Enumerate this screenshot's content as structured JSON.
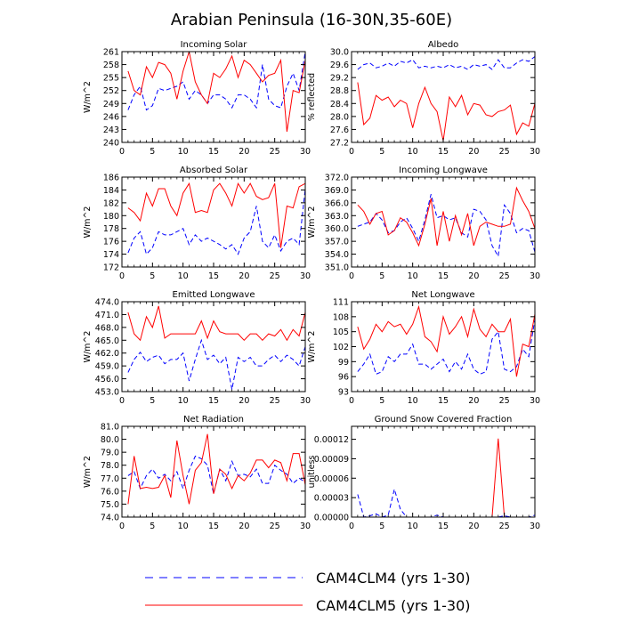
{
  "title": "Arabian Peninsula (16-30N,35-60E)",
  "legend": [
    {
      "name": "CAM4CLM4 (yrs 1-30)",
      "color": "#0000ff",
      "dash": "dashed"
    },
    {
      "name": "CAM4CLM5 (yrs 1-30)",
      "color": "#ff0000",
      "dash": "solid"
    }
  ],
  "chart_data": [
    {
      "type": "line",
      "title": "Incoming Solar",
      "ylabel": "W/m^2",
      "ylim": [
        240,
        261
      ],
      "yticks": [
        "240",
        "243",
        "246",
        "249",
        "252",
        "255",
        "258",
        "261"
      ],
      "xlim": [
        0,
        30
      ],
      "xticks": [
        "0",
        "5",
        "10",
        "15",
        "20",
        "25",
        "30"
      ],
      "grid": false,
      "x": [
        1,
        2,
        3,
        4,
        5,
        6,
        7,
        8,
        9,
        10,
        11,
        12,
        13,
        14,
        15,
        16,
        17,
        18,
        19,
        20,
        21,
        22,
        23,
        24,
        25,
        26,
        27,
        28,
        29,
        30
      ],
      "series": [
        {
          "name": "CAM4CLM4 (yrs 1-30)",
          "values": [
            247.5,
            251,
            253,
            247.5,
            248.5,
            252.5,
            252,
            252.5,
            253,
            254,
            250,
            252,
            251,
            249,
            251,
            251,
            250,
            248,
            251,
            251,
            250,
            248,
            258,
            250,
            248.5,
            248,
            253,
            256,
            252,
            261
          ]
        },
        {
          "name": "CAM4CLM5 (yrs 1-30)",
          "values": [
            256.5,
            252,
            251,
            257.5,
            255,
            258.5,
            258,
            256,
            250,
            256.5,
            261,
            254,
            251,
            249,
            256,
            255,
            257,
            260,
            255,
            259,
            258,
            256,
            254,
            255.5,
            256,
            259,
            242.5,
            252,
            251.5,
            259
          ]
        }
      ]
    },
    {
      "type": "line",
      "title": "Albedo",
      "ylabel": "% reflected",
      "ylim": [
        27.2,
        30.0
      ],
      "yticks": [
        "27.2",
        "27.6",
        "28.0",
        "28.4",
        "28.8",
        "29.2",
        "29.6",
        "30.0"
      ],
      "xlim": [
        0,
        30
      ],
      "xticks": [
        "0",
        "5",
        "10",
        "15",
        "20",
        "25",
        "30"
      ],
      "grid": false,
      "x": [
        1,
        2,
        3,
        4,
        5,
        6,
        7,
        8,
        9,
        10,
        11,
        12,
        13,
        14,
        15,
        16,
        17,
        18,
        19,
        20,
        21,
        22,
        23,
        24,
        25,
        26,
        27,
        28,
        29,
        30
      ],
      "series": [
        {
          "name": "CAM4CLM4 (yrs 1-30)",
          "values": [
            29.45,
            29.6,
            29.65,
            29.5,
            29.55,
            29.65,
            29.55,
            29.7,
            29.65,
            29.75,
            29.5,
            29.55,
            29.5,
            29.55,
            29.5,
            29.6,
            29.5,
            29.55,
            29.45,
            29.6,
            29.55,
            29.6,
            29.45,
            29.75,
            29.5,
            29.5,
            29.65,
            29.75,
            29.7,
            29.85
          ]
        },
        {
          "name": "CAM4CLM5 (yrs 1-30)",
          "values": [
            29.05,
            27.75,
            27.95,
            28.65,
            28.5,
            28.6,
            28.3,
            28.5,
            28.4,
            27.65,
            28.4,
            28.9,
            28.4,
            28.15,
            27.25,
            28.6,
            28.3,
            28.65,
            28.05,
            28.4,
            28.35,
            28.05,
            28.0,
            28.15,
            28.2,
            28.35,
            27.45,
            27.8,
            27.7,
            28.4
          ]
        }
      ]
    },
    {
      "type": "line",
      "title": "Absorbed Solar",
      "ylabel": "W/m^2",
      "ylim": [
        172,
        186
      ],
      "yticks": [
        "172",
        "174",
        "176",
        "178",
        "180",
        "182",
        "184",
        "186"
      ],
      "xlim": [
        0,
        30
      ],
      "xticks": [
        "0",
        "5",
        "10",
        "15",
        "20",
        "25",
        "30"
      ],
      "grid": false,
      "x": [
        1,
        2,
        3,
        4,
        5,
        6,
        7,
        8,
        9,
        10,
        11,
        12,
        13,
        14,
        15,
        16,
        17,
        18,
        19,
        20,
        21,
        22,
        23,
        24,
        25,
        26,
        27,
        28,
        29,
        30
      ],
      "series": [
        {
          "name": "CAM4CLM4 (yrs 1-30)",
          "values": [
            174.2,
            176.5,
            177.5,
            174,
            175,
            177.5,
            177,
            177,
            177.5,
            178,
            175.5,
            177,
            176,
            176.5,
            176,
            175.5,
            174.8,
            175.5,
            174,
            176.5,
            177.5,
            181.5,
            176,
            175,
            177,
            174.5,
            176,
            176.5,
            175.5,
            184.2
          ]
        },
        {
          "name": "CAM4CLM5 (yrs 1-30)",
          "values": [
            181.2,
            180.5,
            179.2,
            183.5,
            181.5,
            184.2,
            184.2,
            181.5,
            180,
            183.5,
            185,
            180.5,
            180.8,
            180.5,
            184,
            185,
            183.5,
            181.5,
            185,
            183.5,
            185,
            183,
            182.5,
            182.8,
            185,
            175,
            181.5,
            181.2,
            184.5,
            185
          ]
        }
      ]
    },
    {
      "type": "line",
      "title": "Incoming Longwave",
      "ylabel": "W/m^2",
      "ylim": [
        351.0,
        372.0
      ],
      "yticks": [
        "351.0",
        "354.0",
        "357.0",
        "360.0",
        "363.0",
        "366.0",
        "369.0",
        "372.0"
      ],
      "xlim": [
        0,
        30
      ],
      "xticks": [
        "0",
        "5",
        "10",
        "15",
        "20",
        "25",
        "30"
      ],
      "grid": false,
      "x": [
        1,
        2,
        3,
        4,
        5,
        6,
        7,
        8,
        9,
        10,
        11,
        12,
        13,
        14,
        15,
        16,
        17,
        18,
        19,
        20,
        21,
        22,
        23,
        24,
        25,
        26,
        27,
        28,
        29,
        30
      ],
      "series": [
        {
          "name": "CAM4CLM4 (yrs 1-30)",
          "values": [
            360.5,
            361,
            361.5,
            363.5,
            362,
            359,
            359.5,
            361.5,
            362.5,
            360,
            357,
            362,
            368,
            362.5,
            363,
            362,
            362.5,
            359,
            358,
            364.5,
            364,
            362,
            356,
            353.5,
            365.5,
            363.5,
            359,
            360,
            359.5,
            354.5
          ]
        },
        {
          "name": "CAM4CLM5 (yrs 1-30)",
          "values": [
            365.5,
            364,
            361,
            363.5,
            364,
            358.5,
            359.5,
            362.5,
            361.5,
            359,
            356,
            361,
            367,
            356,
            364,
            357,
            363,
            358.5,
            363.5,
            356,
            360.5,
            361.5,
            361,
            360.5,
            360.5,
            361,
            369.5,
            366.5,
            364,
            360
          ]
        }
      ]
    },
    {
      "type": "line",
      "title": "Emitted Longwave",
      "ylabel": "W/m^2",
      "ylim": [
        453.0,
        474.0
      ],
      "yticks": [
        "453.0",
        "456.0",
        "459.0",
        "462.0",
        "465.0",
        "468.0",
        "471.0",
        "474.0"
      ],
      "xlim": [
        0,
        30
      ],
      "xticks": [
        "0",
        "5",
        "10",
        "15",
        "20",
        "25",
        "30"
      ],
      "grid": false,
      "x": [
        1,
        2,
        3,
        4,
        5,
        6,
        7,
        8,
        9,
        10,
        11,
        12,
        13,
        14,
        15,
        16,
        17,
        18,
        19,
        20,
        21,
        22,
        23,
        24,
        25,
        26,
        27,
        28,
        29,
        30
      ],
      "series": [
        {
          "name": "CAM4CLM4 (yrs 1-30)",
          "values": [
            457.5,
            460.5,
            462.2,
            460,
            461,
            461.5,
            459.5,
            460.5,
            460.5,
            462,
            455.5,
            460.5,
            465,
            460.5,
            461.5,
            459.5,
            461,
            453.5,
            461,
            460,
            461,
            459,
            459,
            460.5,
            461.5,
            460,
            461.5,
            460.5,
            459,
            463.5
          ]
        },
        {
          "name": "CAM4CLM5 (yrs 1-30)",
          "values": [
            471.5,
            466.5,
            465,
            470.5,
            468,
            473,
            465.5,
            466.5,
            466.5,
            466.5,
            466.5,
            466.5,
            469.5,
            465.5,
            469.5,
            467,
            466.5,
            466.5,
            466.5,
            465,
            466.5,
            466.5,
            465,
            466.5,
            466,
            467.5,
            465,
            467.5,
            466,
            471.5
          ]
        }
      ]
    },
    {
      "type": "line",
      "title": "Net Longwave",
      "ylabel": "W/m^2",
      "ylim": [
        93,
        111
      ],
      "yticks": [
        "93",
        "96",
        "99",
        "102",
        "105",
        "108",
        "111"
      ],
      "xlim": [
        0,
        30
      ],
      "xticks": [
        "0",
        "5",
        "10",
        "15",
        "20",
        "25",
        "30"
      ],
      "grid": false,
      "x": [
        1,
        2,
        3,
        4,
        5,
        6,
        7,
        8,
        9,
        10,
        11,
        12,
        13,
        14,
        15,
        16,
        17,
        18,
        19,
        20,
        21,
        22,
        23,
        24,
        25,
        26,
        27,
        28,
        29,
        30
      ],
      "series": [
        {
          "name": "CAM4CLM4 (yrs 1-30)",
          "values": [
            97,
            98.5,
            100.5,
            96.5,
            97,
            100,
            99,
            100.5,
            100.5,
            102.5,
            98.5,
            98.5,
            97.5,
            98.5,
            99.5,
            97,
            99,
            97.5,
            100.5,
            97.5,
            96.5,
            97,
            103.5,
            105,
            97.5,
            97,
            98,
            101.5,
            100,
            107.5
          ]
        },
        {
          "name": "CAM4CLM5 (yrs 1-30)",
          "values": [
            106,
            101.5,
            103.5,
            106.5,
            105,
            107,
            106,
            106.5,
            104.5,
            106.5,
            110,
            104,
            103,
            101,
            108,
            104.5,
            106,
            108,
            104,
            109.5,
            105.5,
            104,
            106.5,
            105,
            105,
            107.5,
            96,
            102.5,
            102,
            108.5
          ]
        }
      ]
    },
    {
      "type": "line",
      "title": "Net Radiation",
      "ylabel": "W/m^2",
      "ylim": [
        74.0,
        81.0
      ],
      "yticks": [
        "74.0",
        "75.0",
        "76.0",
        "77.0",
        "78.0",
        "79.0",
        "80.0",
        "81.0"
      ],
      "xlim": [
        0,
        30
      ],
      "xticks": [
        "0",
        "5",
        "10",
        "15",
        "20",
        "25",
        "30"
      ],
      "grid": false,
      "x": [
        1,
        2,
        3,
        4,
        5,
        6,
        7,
        8,
        9,
        10,
        11,
        12,
        13,
        14,
        15,
        16,
        17,
        18,
        19,
        20,
        21,
        22,
        23,
        24,
        25,
        26,
        27,
        28,
        29,
        30
      ],
      "series": [
        {
          "name": "CAM4CLM4 (yrs 1-30)",
          "values": [
            77.2,
            77.5,
            76.2,
            77.2,
            77.7,
            77.0,
            77.3,
            76.8,
            77.5,
            76.2,
            77.6,
            78.7,
            78.5,
            78.0,
            75.8,
            77.7,
            76.8,
            78.3,
            77.2,
            77.3,
            77.1,
            77.7,
            76.6,
            76.6,
            78.0,
            77.6,
            77.3,
            76.6,
            77.0,
            76.7
          ]
        },
        {
          "name": "CAM4CLM5 (yrs 1-30)",
          "values": [
            75.0,
            78.7,
            76.2,
            76.3,
            76.2,
            76.3,
            77.2,
            75.5,
            79.9,
            77.2,
            75.0,
            77.6,
            78.2,
            80.4,
            75.8,
            77.7,
            77.3,
            76.2,
            77.2,
            76.8,
            77.4,
            78.4,
            78.4,
            77.8,
            78.4,
            78.2,
            76.8,
            78.9,
            78.9,
            76.5
          ]
        }
      ]
    },
    {
      "type": "line",
      "title": "Ground Snow Covered Fraction",
      "ylabel": "unitless",
      "ylim": [
        0,
        0.00014
      ],
      "yticks": [
        "0.00000",
        "0.00003",
        "0.00006",
        "0.00009",
        "0.00012"
      ],
      "xlim": [
        0,
        30
      ],
      "xticks": [
        "0",
        "5",
        "10",
        "15",
        "20",
        "25",
        "30"
      ],
      "grid": false,
      "x": [
        1,
        2,
        3,
        4,
        5,
        6,
        7,
        8,
        9,
        10,
        11,
        12,
        13,
        14,
        15,
        16,
        17,
        18,
        19,
        20,
        21,
        22,
        23,
        24,
        25,
        26,
        27,
        28,
        29,
        30
      ],
      "series": [
        {
          "name": "CAM4CLM4 (yrs 1-30)",
          "values": [
            3.5e-05,
            0,
            2e-06,
            5e-06,
            0,
            3e-06,
            4.3e-05,
            1.2e-05,
            0,
            0,
            0,
            0,
            0,
            3e-06,
            0,
            0,
            0,
            0,
            0,
            0,
            0,
            0,
            0,
            0,
            2e-06,
            0,
            0,
            0,
            0,
            3e-06
          ]
        },
        {
          "name": "CAM4CLM5 (yrs 1-30)",
          "values": [
            0,
            0,
            0,
            0,
            0,
            0,
            0,
            0,
            0,
            0,
            0,
            0,
            0,
            0,
            0,
            0,
            0,
            0,
            0,
            0,
            0,
            0,
            0,
            0.000121,
            0,
            0,
            0,
            0,
            0,
            0
          ]
        }
      ]
    }
  ]
}
